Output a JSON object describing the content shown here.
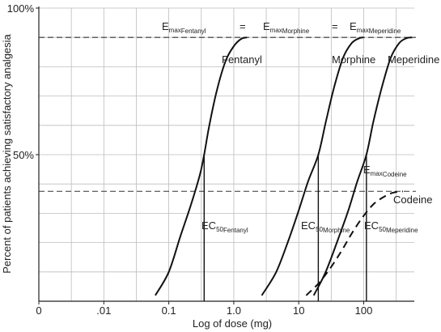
{
  "chart_data": {
    "type": "line",
    "xlabel": "Log of dose (mg)",
    "ylabel": "Percent of patients achieving satisfactory analgesia",
    "x_scale": "log",
    "x_ticks": [
      {
        "label": "0",
        "value": 0.001
      },
      {
        "label": ".01",
        "value": 0.01
      },
      {
        "label": "0.1",
        "value": 0.1
      },
      {
        "label": "1.0",
        "value": 1
      },
      {
        "label": "10",
        "value": 10
      },
      {
        "label": "100",
        "value": 100
      }
    ],
    "y_ticks": [
      {
        "label": "50%",
        "value": 50
      },
      {
        "label": "100%",
        "value": 100
      }
    ],
    "xlim": [
      0.001,
      600
    ],
    "ylim": [
      0,
      100
    ],
    "grid": true,
    "emax_line": {
      "y": 90,
      "label_parts": [
        {
          "main": "E",
          "sub": "max",
          "sub2": "Fentanyl"
        },
        {
          "main": "="
        },
        {
          "main": "E",
          "sub": "max",
          "sub2": "Morphine"
        },
        {
          "main": "="
        },
        {
          "main": "E",
          "sub": "max",
          "sub2": "Meperidine"
        }
      ]
    },
    "emax_codeine_line": {
      "y": 37.5,
      "label": {
        "main": "E",
        "sub": "max",
        "sub2": "Codeine"
      }
    },
    "series": [
      {
        "name": "Fentanyl",
        "style": "solid",
        "ec50": 0.35,
        "ec50_label": {
          "main": "EC",
          "sub": "50",
          "sub2": "Fentanyl"
        },
        "points": [
          [
            0.062,
            2
          ],
          [
            0.1,
            10
          ],
          [
            0.15,
            22
          ],
          [
            0.22,
            33
          ],
          [
            0.3,
            43
          ],
          [
            0.35,
            50
          ],
          [
            0.42,
            60
          ],
          [
            0.55,
            72
          ],
          [
            0.75,
            82
          ],
          [
            1.0,
            87
          ],
          [
            1.3,
            89.5
          ],
          [
            1.6,
            90
          ]
        ]
      },
      {
        "name": "Morphine",
        "style": "solid",
        "ec50": 20,
        "ec50_label": {
          "main": "EC",
          "sub": "50",
          "sub2": "Morphine"
        },
        "points": [
          [
            2.7,
            2
          ],
          [
            4.5,
            10
          ],
          [
            7,
            21
          ],
          [
            10,
            31
          ],
          [
            14,
            41
          ],
          [
            20,
            50
          ],
          [
            26,
            61
          ],
          [
            35,
            73
          ],
          [
            48,
            83
          ],
          [
            65,
            88
          ],
          [
            85,
            89.7
          ],
          [
            100,
            90
          ]
        ]
      },
      {
        "name": "Meperidine",
        "style": "solid",
        "ec50": 110,
        "ec50_label": {
          "main": "EC",
          "sub": "50",
          "sub2": "Meperidine"
        },
        "points": [
          [
            17,
            2
          ],
          [
            26,
            10
          ],
          [
            40,
            21
          ],
          [
            58,
            31
          ],
          [
            80,
            41
          ],
          [
            110,
            50
          ],
          [
            140,
            61
          ],
          [
            190,
            73
          ],
          [
            260,
            83
          ],
          [
            350,
            88
          ],
          [
            450,
            89.7
          ],
          [
            560,
            90
          ]
        ]
      },
      {
        "name": "Codeine",
        "style": "dashed",
        "ec50_label": null,
        "points": [
          [
            13,
            2
          ],
          [
            20,
            6
          ],
          [
            30,
            11
          ],
          [
            45,
            17
          ],
          [
            65,
            23
          ],
          [
            95,
            28.5
          ],
          [
            140,
            33
          ],
          [
            200,
            35.5
          ],
          [
            280,
            37
          ],
          [
            400,
            37.5
          ]
        ]
      }
    ]
  }
}
